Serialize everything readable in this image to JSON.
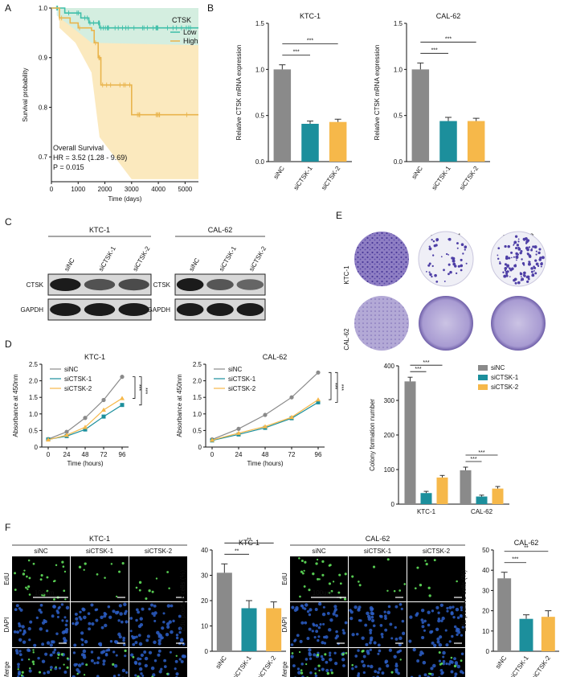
{
  "panels": {
    "A": "A",
    "B": "B",
    "C": "C",
    "D": "D",
    "E": "E",
    "F": "F"
  },
  "colors": {
    "gray": "#8a8a8a",
    "teal": "#1c8f9c",
    "yellow": "#f6b84a",
    "low": "#3fbfa9",
    "high": "#e9b44c",
    "lowFill": "#cdeee6",
    "highFill": "#fbe9be"
  },
  "panelA": {
    "chart_data": {
      "type": "line",
      "title": "",
      "xlabel": "Time (days)",
      "ylabel": "Survival probability",
      "xlim": [
        0,
        5500
      ],
      "ylim": [
        0.65,
        1.0
      ],
      "xticks": [
        0,
        1000,
        2000,
        3000,
        4000,
        5000
      ],
      "yticks": [
        0.7,
        0.8,
        0.9,
        1.0
      ],
      "legend_title": "CTSK",
      "series": [
        {
          "name": "Low",
          "steps": [
            [
              0,
              1.0
            ],
            [
              500,
              0.99
            ],
            [
              1100,
              0.98
            ],
            [
              1400,
              0.97
            ],
            [
              1800,
              0.96
            ],
            [
              5500,
              0.96
            ]
          ]
        },
        {
          "name": "High",
          "steps": [
            [
              0,
              1.0
            ],
            [
              300,
              0.98
            ],
            [
              700,
              0.97
            ],
            [
              1000,
              0.96
            ],
            [
              1500,
              0.955
            ],
            [
              1600,
              0.93
            ],
            [
              1750,
              0.9
            ],
            [
              1850,
              0.845
            ],
            [
              3000,
              0.785
            ],
            [
              5500,
              0.785
            ]
          ]
        }
      ],
      "annotations": [
        "Overall Survival",
        "HR = 3.52 (1.28 - 9.69)",
        "P = 0.015"
      ]
    }
  },
  "panelB": {
    "chart_data": [
      {
        "type": "bar",
        "title": "KTC-1",
        "ylabel": "Relative CTSK mRNA expression",
        "categories": [
          "siNC",
          "siCTSK-1",
          "siCTSK-2"
        ],
        "values": [
          1.0,
          0.41,
          0.43
        ],
        "errors": [
          0.05,
          0.03,
          0.03
        ],
        "ylim": [
          0,
          1.5
        ],
        "yticks": [
          "0.0",
          "0.5",
          "1.0",
          "1.5"
        ],
        "sig": [
          "***",
          "***"
        ]
      },
      {
        "type": "bar",
        "title": "CAL-62",
        "ylabel": "Relative CTSK mRNA expression",
        "categories": [
          "siNC",
          "siCTSK-1",
          "siCTSK-2"
        ],
        "values": [
          1.0,
          0.44,
          0.44
        ],
        "errors": [
          0.07,
          0.04,
          0.03
        ],
        "ylim": [
          0,
          1.5
        ],
        "yticks": [
          "0.0",
          "0.5",
          "1.0",
          "1.5"
        ],
        "sig": [
          "***",
          "***"
        ]
      }
    ]
  },
  "panelC": {
    "blots": [
      {
        "cell": "KTC-1",
        "lanes": [
          "siNC",
          "siCTSK-1",
          "siCTSK-2"
        ],
        "rows": [
          "CTSK",
          "GAPDH"
        ]
      },
      {
        "cell": "CAL-62",
        "lanes": [
          "siNC",
          "siCTSK-1",
          "siCTSK-2"
        ],
        "rows": [
          "CTSK",
          "GAPDH"
        ]
      }
    ]
  },
  "panelD": {
    "chart_data": [
      {
        "type": "line",
        "title": "KTC-1",
        "xlabel": "Time (hours)",
        "ylabel": "Absorbance at 450nm",
        "x": [
          0,
          24,
          48,
          72,
          96
        ],
        "ylim": [
          0,
          2.5
        ],
        "yticks": [
          "0",
          "0.5",
          "1.0",
          "1.5",
          "2.0",
          "2.5"
        ],
        "series": [
          {
            "name": "siNC",
            "values": [
              0.24,
              0.46,
              0.88,
              1.42,
              2.12
            ]
          },
          {
            "name": "siCTSK-1",
            "values": [
              0.23,
              0.33,
              0.53,
              0.92,
              1.27
            ]
          },
          {
            "name": "siCTSK-2",
            "values": [
              0.22,
              0.36,
              0.6,
              1.12,
              1.47
            ]
          }
        ],
        "sig": [
          "***",
          "***"
        ]
      },
      {
        "type": "line",
        "title": "CAL-62",
        "xlabel": "Time (hours)",
        "ylabel": "Absorbance at 450nm",
        "x": [
          0,
          24,
          48,
          72,
          96
        ],
        "ylim": [
          0,
          2.5
        ],
        "yticks": [
          "0",
          "0.5",
          "1.0",
          "1.5",
          "2.0",
          "2.5"
        ],
        "series": [
          {
            "name": "siNC",
            "values": [
              0.23,
              0.55,
              0.97,
              1.5,
              2.25
            ]
          },
          {
            "name": "siCTSK-1",
            "values": [
              0.2,
              0.38,
              0.58,
              0.87,
              1.35
            ]
          },
          {
            "name": "siCTSK-2",
            "values": [
              0.21,
              0.42,
              0.62,
              0.9,
              1.43
            ]
          }
        ],
        "sig": [
          "***",
          "***"
        ]
      }
    ]
  },
  "panelE": {
    "columns": [
      "siNC",
      "siCTSK-1",
      "siCTSK-2"
    ],
    "rows": [
      "KTC-1",
      "CAL-62"
    ],
    "chart_data": {
      "type": "bar",
      "ylabel": "Colony formation number",
      "categories": [
        "KTC-1",
        "CAL-62"
      ],
      "ylim": [
        0,
        400
      ],
      "yticks": [
        "0",
        "100",
        "200",
        "300",
        "400"
      ],
      "series": [
        {
          "name": "siNC",
          "values": [
            355,
            98
          ],
          "errors": [
            12,
            9
          ]
        },
        {
          "name": "siCTSK-1",
          "values": [
            32,
            22
          ],
          "errors": [
            5,
            4
          ]
        },
        {
          "name": "siCTSK-2",
          "values": [
            77,
            45
          ],
          "errors": [
            6,
            6
          ]
        }
      ],
      "sig": [
        "***",
        "***"
      ]
    }
  },
  "panelF": {
    "groups": [
      {
        "cell": "KTC-1",
        "columns": [
          "siNC",
          "siCTSK-1",
          "siCTSK-2"
        ],
        "rows": [
          "EdU",
          "DAPI",
          "Merge"
        ],
        "scale": "100um"
      },
      {
        "cell": "CAL-62",
        "columns": [
          "siNC",
          "siCTSK-1",
          "siCTSK-2"
        ],
        "rows": [
          "EdU",
          "DAPI",
          "Merge"
        ],
        "scale": "100um"
      }
    ],
    "chart_data": [
      {
        "type": "bar",
        "title": "KTC-1",
        "ylabel": "Edu positive cells (%)",
        "categories": [
          "siNC",
          "siCTSK-1",
          "siCTSK-2"
        ],
        "values": [
          31,
          17,
          17
        ],
        "errors": [
          3.5,
          3,
          2.5
        ],
        "ylim": [
          0,
          40
        ],
        "yticks": [
          "0",
          "10",
          "20",
          "30",
          "40"
        ],
        "sig": [
          "**",
          "**"
        ]
      },
      {
        "type": "bar",
        "title": "CAL-62",
        "ylabel": "Edu positive cells (%)",
        "categories": [
          "siNC",
          "siCTSK-1",
          "siCTSK-2"
        ],
        "values": [
          36,
          16,
          17
        ],
        "errors": [
          3,
          2,
          3
        ],
        "ylim": [
          0,
          50
        ],
        "yticks": [
          "0",
          "10",
          "20",
          "30",
          "40",
          "50"
        ],
        "sig": [
          "***",
          "**"
        ]
      }
    ]
  }
}
